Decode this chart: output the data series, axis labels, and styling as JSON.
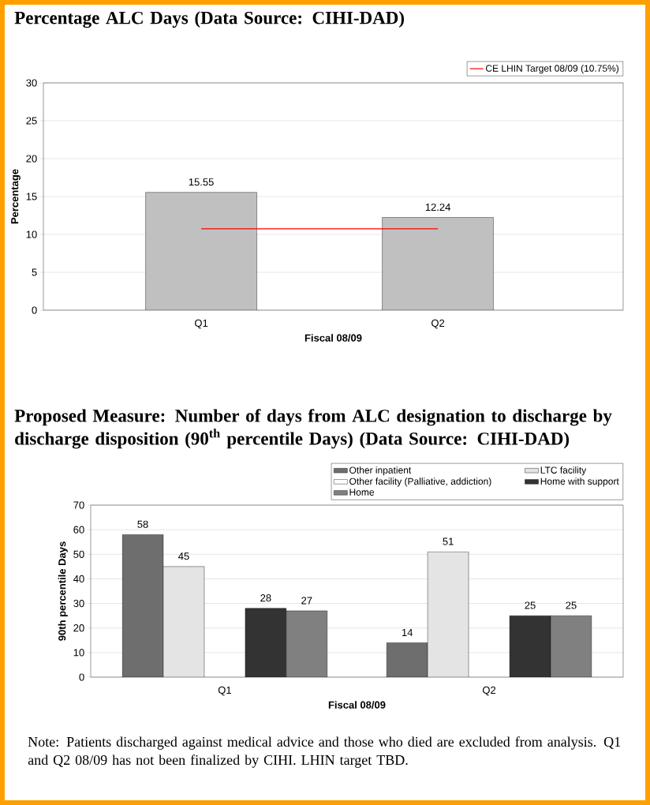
{
  "chart_data": [
    {
      "type": "bar",
      "title": "Percentage ALC Days (Data Source: CIHI-DAD)",
      "xlabel": "Fiscal 08/09",
      "ylabel": "Percentage",
      "categories": [
        "Q1",
        "Q2"
      ],
      "values": [
        15.55,
        12.24
      ],
      "color": "#c0c0c0",
      "ylim": [
        0,
        30
      ],
      "yticks": [
        0,
        5,
        10,
        15,
        20,
        25,
        30
      ],
      "grid": "y",
      "data_labels": true,
      "legend": "top right",
      "ref_lines": [
        {
          "axis": "y",
          "value": 10.75,
          "label": "CE LHIN Target 08/09 (10.75%)",
          "color": "#ff0000"
        }
      ]
    },
    {
      "type": "bar",
      "title": "Proposed Measure: Number of days from ALC designation to discharge by discharge disposition (90$^{th}$ percentile Days) (Data Source: CIHI-DAD)",
      "xlabel": "Fiscal 08/09",
      "ylabel": "90th percentile Days",
      "categories": [
        "Q1",
        "Q2"
      ],
      "ylim": [
        0,
        70
      ],
      "yticks": [
        0,
        10,
        20,
        30,
        40,
        50,
        60,
        70
      ],
      "grid": "y",
      "data_labels": true,
      "legend": "top right",
      "series": [
        {
          "name": "Other inpatient",
          "color": "#6e6e6e",
          "values": [
            58,
            14
          ]
        },
        {
          "name": "LTC facility",
          "color": "#e4e4e4",
          "values": [
            45,
            51
          ]
        },
        {
          "name": "Other facility (Palliative, addiction)",
          "color": "#ffffff",
          "values": [
            null,
            null
          ]
        },
        {
          "name": "Home with support",
          "color": "#333333",
          "values": [
            28,
            25
          ]
        },
        {
          "name": "Home",
          "color": "#808080",
          "values": [
            27,
            25
          ]
        }
      ],
      "annotations": [
        "Note: Patients discharged against medical advice and those who died are excluded from analysis. Q1 and Q2 08/09 has not been finalized by CIHI. LHIN target TBD."
      ]
    }
  ]
}
